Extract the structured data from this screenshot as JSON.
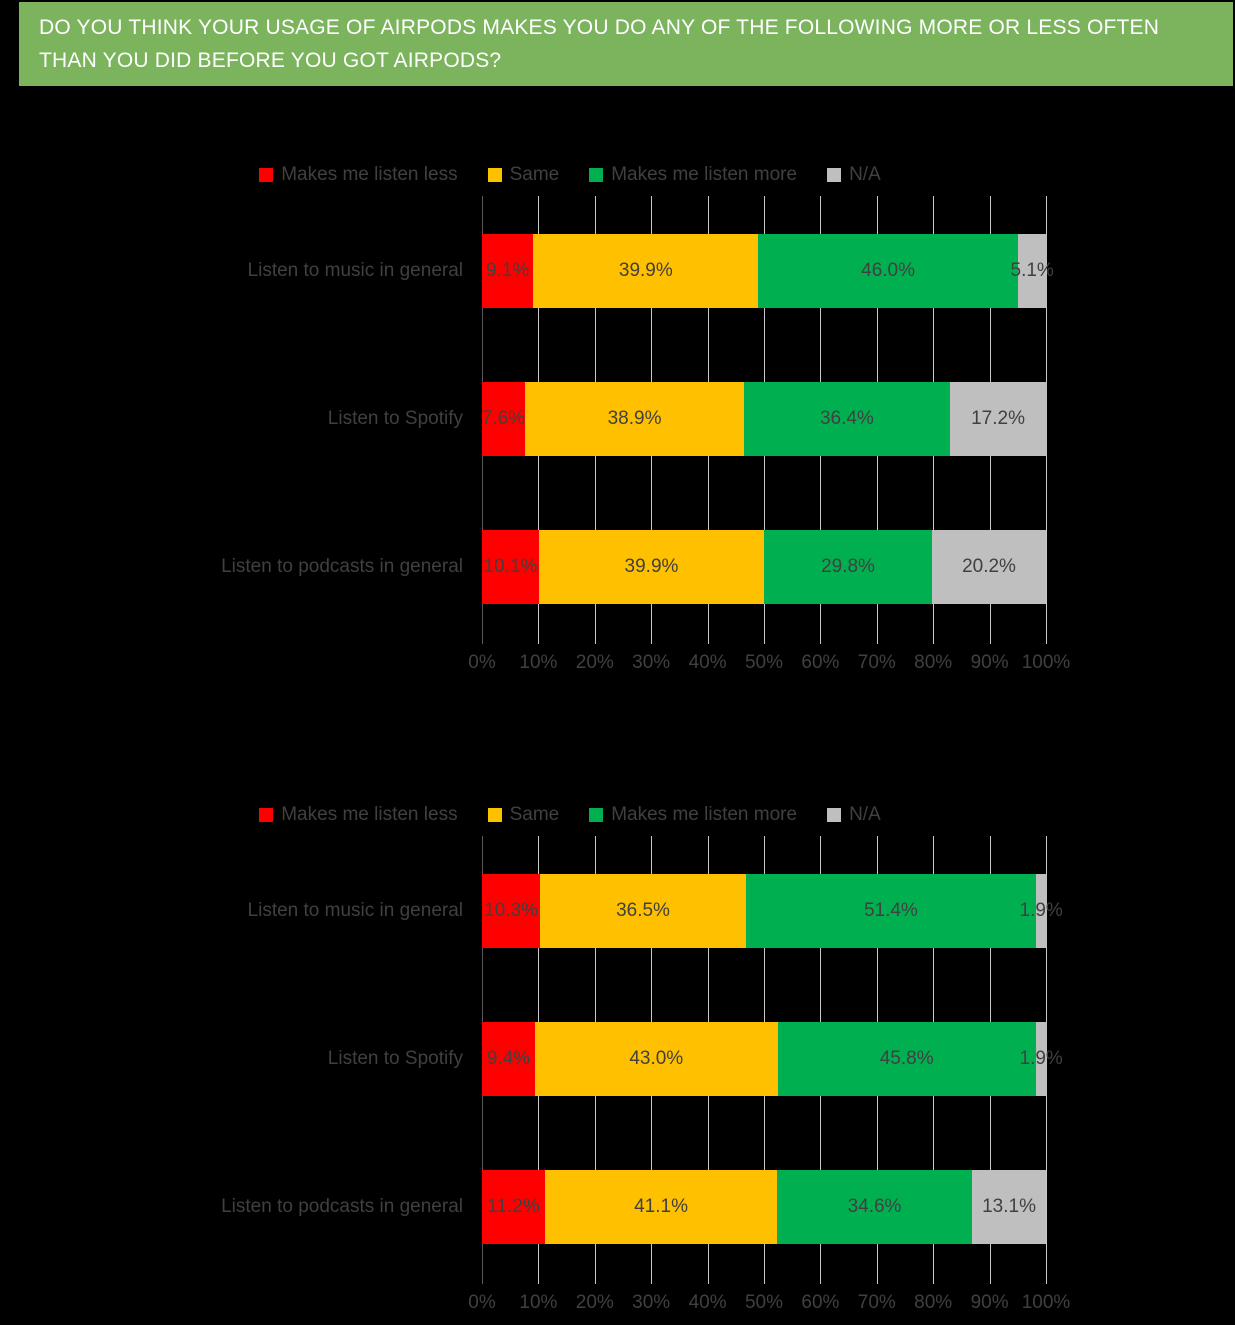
{
  "header": {
    "lines": [
      "DO YOU THINK YOUR USAGE OF AIRPODS MAKES YOU DO ANY OF THE FOLLOWING MORE OR LESS OFTEN",
      "THAN YOU DID BEFORE YOU GOT AIRPODS?"
    ],
    "bg_color": "#7CB45E",
    "text_color": "#FFFFFF"
  },
  "colors": {
    "background": "#000000",
    "text": "#404040",
    "gridline": "#C8C8C8",
    "axis_line": "#595959",
    "red": "#FF0000",
    "yellow": "#FFC000",
    "green": "#00B050",
    "gray": "#BFBFBF"
  },
  "chart_data": [
    {
      "type": "bar",
      "orientation": "horizontal",
      "stacked": true,
      "legend_position": "top",
      "grid": true,
      "xlim": [
        0,
        100
      ],
      "x_ticks": [
        "0%",
        "10%",
        "20%",
        "30%",
        "40%",
        "50%",
        "60%",
        "70%",
        "80%",
        "90%",
        "100%"
      ],
      "categories": [
        "Listen to music in general",
        "Listen to Spotify",
        "Listen to podcasts in general"
      ],
      "series": [
        {
          "name": "Makes me listen less",
          "color_key": "red",
          "values": [
            9.1,
            7.6,
            10.1
          ]
        },
        {
          "name": "Same",
          "color_key": "yellow",
          "values": [
            39.9,
            38.9,
            39.9
          ]
        },
        {
          "name": "Makes me listen more",
          "color_key": "green",
          "values": [
            46.0,
            36.4,
            29.8
          ]
        },
        {
          "name": "N/A",
          "color_key": "gray",
          "values": [
            5.1,
            17.2,
            20.2
          ]
        }
      ],
      "data_labels": [
        [
          "9.1%",
          "39.9%",
          "46.0%",
          "5.1%"
        ],
        [
          "7.6%",
          "38.9%",
          "36.4%",
          "17.2%"
        ],
        [
          "10.1%",
          "39.9%",
          "29.8%",
          "20.2%"
        ]
      ]
    },
    {
      "type": "bar",
      "orientation": "horizontal",
      "stacked": true,
      "legend_position": "top",
      "grid": true,
      "xlim": [
        0,
        100
      ],
      "x_ticks": [
        "0%",
        "10%",
        "20%",
        "30%",
        "40%",
        "50%",
        "60%",
        "70%",
        "80%",
        "90%",
        "100%"
      ],
      "categories": [
        "Listen to music in general",
        "Listen to Spotify",
        "Listen to podcasts in general"
      ],
      "series": [
        {
          "name": "Makes me listen less",
          "color_key": "red",
          "values": [
            10.3,
            9.4,
            11.2
          ]
        },
        {
          "name": "Same",
          "color_key": "yellow",
          "values": [
            36.5,
            43.0,
            41.1
          ]
        },
        {
          "name": "Makes me listen more",
          "color_key": "green",
          "values": [
            51.4,
            45.8,
            34.6
          ]
        },
        {
          "name": "N/A",
          "color_key": "gray",
          "values": [
            1.9,
            1.9,
            13.1
          ]
        }
      ],
      "data_labels": [
        [
          "10.3%",
          "36.5%",
          "51.4%",
          "1.9%"
        ],
        [
          "9.4%",
          "43.0%",
          "45.8%",
          "1.9%"
        ],
        [
          "11.2%",
          "41.1%",
          "34.6%",
          "13.1%"
        ]
      ]
    }
  ]
}
